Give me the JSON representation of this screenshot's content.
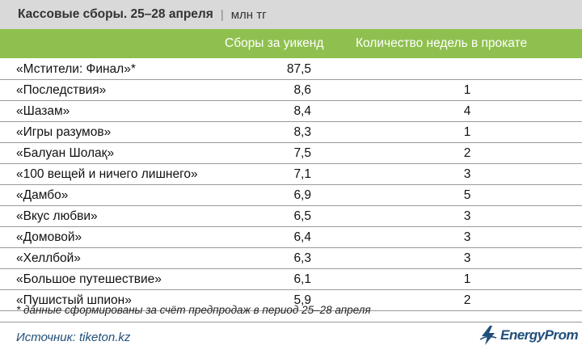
{
  "header": {
    "title": "Кассовые сборы. 25–28 апреля",
    "separator": "|",
    "unit": "млн тг",
    "col_weekend": "Сборы за уикенд",
    "col_weeks": "Количество недель в прокате"
  },
  "rows": [
    {
      "name": "«Мстители: Финал»*",
      "value": "87,5",
      "weeks": ""
    },
    {
      "name": "«Последствия»",
      "value": "8,6",
      "weeks": "1"
    },
    {
      "name": "«Шазам»",
      "value": "8,4",
      "weeks": "4"
    },
    {
      "name": "«Игры разумов»",
      "value": "8,3",
      "weeks": "1"
    },
    {
      "name": "«Балуан Шолақ»",
      "value": "7,5",
      "weeks": "2"
    },
    {
      "name": "«100 вещей и ничего лишнего»",
      "value": "7,1",
      "weeks": "3"
    },
    {
      "name": "«Дамбо»",
      "value": "6,9",
      "weeks": "5"
    },
    {
      "name": "«Вкус любви»",
      "value": "6,5",
      "weeks": "3"
    },
    {
      "name": "«Домовой»",
      "value": "6,4",
      "weeks": "3"
    },
    {
      "name": "«Хеллбой»",
      "value": "6,3",
      "weeks": "3"
    },
    {
      "name": "«Большое путешествие»",
      "value": "6,1",
      "weeks": "1"
    },
    {
      "name": "«Пушистый шпион»",
      "value": "5,9",
      "weeks": "2"
    }
  ],
  "footnote": "* данные сформированы за счёт предпродаж в период 25–28 апреля",
  "source": "Источник: tiketon.kz",
  "logo": {
    "brand": "EnergyProm",
    "icon": "energyprom-logo-icon",
    "color": "#1f4e79"
  },
  "colors": {
    "header_green": "#8fc04f",
    "title_gray": "#d9d9d9",
    "source_blue": "#1f4e79"
  }
}
